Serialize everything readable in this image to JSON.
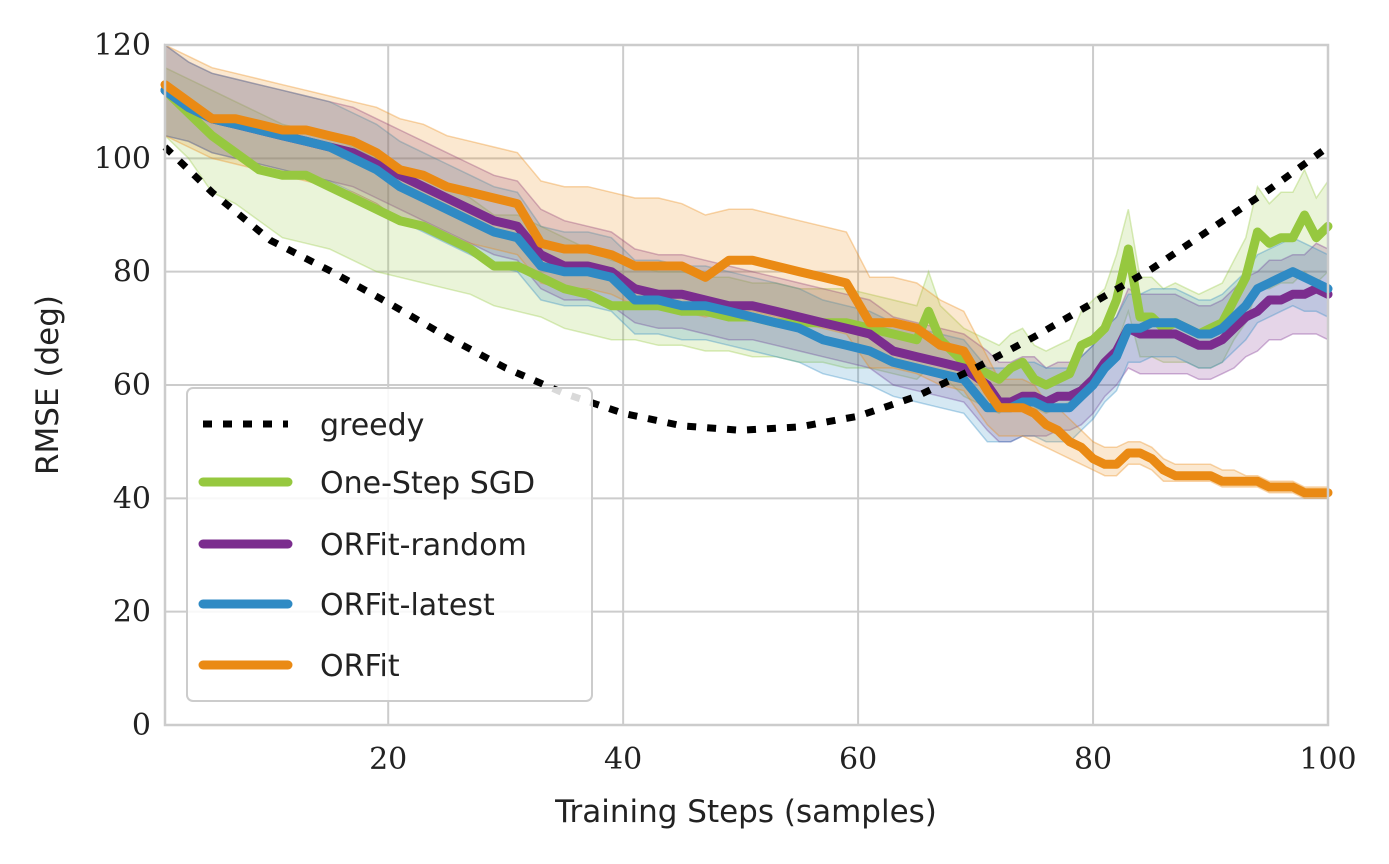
{
  "chart_data": {
    "type": "line",
    "title": "",
    "xlabel": "Training Steps (samples)",
    "ylabel": "RMSE (deg)",
    "xlim": [
      1,
      100
    ],
    "ylim": [
      0,
      120
    ],
    "xticks": [
      20,
      40,
      60,
      80,
      100
    ],
    "yticks": [
      0,
      20,
      40,
      60,
      80,
      100,
      120
    ],
    "grid": true,
    "legend_position": "bottom-left",
    "series": [
      {
        "name": "greedy",
        "color": "#000000",
        "style": "dotted",
        "x": [
          1,
          5,
          10,
          15,
          20,
          25,
          30,
          35,
          40,
          45,
          50,
          55,
          60,
          65,
          70,
          75,
          80,
          85,
          90,
          95,
          100
        ],
        "values": [
          102,
          94,
          85.5,
          80.2,
          74.5,
          68.5,
          63,
          58.5,
          55,
          52.8,
          52,
          52.6,
          54.5,
          58,
          63,
          68.5,
          74.5,
          80.5,
          87.5,
          94.5,
          102
        ]
      },
      {
        "name": "One-Step SGD",
        "color": "#96c83f",
        "style": "solid",
        "x": [
          1,
          3,
          5,
          7,
          9,
          11,
          13,
          15,
          17,
          19,
          21,
          23,
          25,
          27,
          29,
          31,
          33,
          35,
          37,
          39,
          41,
          43,
          45,
          47,
          49,
          51,
          53,
          55,
          57,
          59,
          61,
          63,
          65,
          66,
          67,
          69,
          71,
          72,
          73,
          74,
          75,
          76,
          77,
          78,
          79,
          80,
          81,
          82,
          83,
          84,
          85,
          86,
          87,
          88,
          89,
          90,
          91,
          92,
          93,
          94,
          95,
          96,
          97,
          98,
          99,
          100
        ],
        "values": [
          112,
          108,
          104,
          101,
          98,
          97,
          97,
          95,
          93,
          91,
          89,
          88,
          86,
          84,
          81,
          81,
          79,
          77,
          76,
          74,
          74,
          74,
          73,
          73,
          72,
          72,
          71,
          71,
          71,
          71,
          70,
          69,
          68,
          73,
          68,
          64,
          62,
          61,
          63,
          64,
          61,
          60,
          61,
          62,
          67,
          68,
          70,
          75,
          84,
          72,
          72,
          70,
          71,
          70,
          69,
          70,
          71,
          75,
          79,
          87,
          85,
          86,
          86,
          90,
          86,
          88
        ],
        "band_low": [
          104,
          100,
          94,
          92,
          89,
          86,
          85,
          84,
          82,
          80,
          79,
          78,
          77,
          76,
          74,
          73,
          72,
          70,
          69,
          68,
          68,
          67,
          67,
          66,
          66,
          65,
          65,
          64,
          64,
          63,
          63,
          62,
          61,
          63,
          62,
          58,
          56,
          55,
          57,
          58,
          56,
          55,
          56,
          57,
          60,
          62,
          64,
          67,
          73,
          65,
          65,
          64,
          64,
          64,
          63,
          63,
          64,
          68,
          71,
          77,
          77,
          78,
          78,
          80,
          78,
          80
        ],
        "band_high": [
          116,
          114,
          112,
          110,
          108,
          106,
          105,
          104,
          102,
          100,
          98,
          97,
          95,
          93,
          90,
          90,
          88,
          86,
          84,
          82,
          81,
          80,
          80,
          79,
          79,
          78,
          78,
          77,
          77,
          77,
          76,
          75,
          74,
          80,
          74,
          70,
          68,
          67,
          69,
          70,
          67,
          66,
          67,
          68,
          73,
          75,
          77,
          83,
          91,
          79,
          79,
          77,
          78,
          77,
          76,
          77,
          78,
          82,
          86,
          95,
          92,
          94,
          94,
          98,
          93,
          96
        ]
      },
      {
        "name": "ORFit-random",
        "color": "#7b2d8e",
        "style": "solid",
        "x": [
          1,
          3,
          5,
          7,
          9,
          11,
          13,
          15,
          17,
          19,
          21,
          23,
          25,
          27,
          29,
          31,
          33,
          35,
          37,
          39,
          41,
          43,
          45,
          47,
          49,
          51,
          53,
          55,
          57,
          59,
          61,
          63,
          65,
          67,
          69,
          71,
          72,
          73,
          74,
          75,
          76,
          77,
          78,
          79,
          80,
          81,
          82,
          83,
          84,
          85,
          86,
          87,
          88,
          89,
          90,
          91,
          92,
          93,
          94,
          95,
          96,
          97,
          98,
          99,
          100
        ],
        "values": [
          112,
          109,
          107,
          106,
          105,
          104,
          103,
          102,
          101,
          99,
          97,
          95,
          93,
          91,
          89,
          88,
          83,
          81,
          81,
          80,
          77,
          76,
          76,
          75,
          74,
          74,
          73,
          72,
          71,
          70,
          69,
          66,
          65,
          64,
          63,
          60,
          57,
          57,
          58,
          58,
          57,
          58,
          58,
          59,
          61,
          64,
          66,
          70,
          69,
          69,
          69,
          69,
          68,
          67,
          67,
          68,
          70,
          72,
          73,
          75,
          75,
          76,
          76,
          77,
          76
        ],
        "band_low": [
          104,
          103,
          101,
          100,
          99,
          98,
          97,
          96,
          95,
          93,
          91,
          89,
          87,
          85,
          83,
          82,
          77,
          75,
          75,
          74,
          71,
          70,
          70,
          69,
          68,
          68,
          67,
          66,
          65,
          64,
          63,
          60,
          59,
          58,
          57,
          52,
          50,
          50,
          51,
          51,
          51,
          52,
          52,
          53,
          55,
          58,
          60,
          63,
          62,
          62,
          62,
          62,
          62,
          61,
          61,
          62,
          63,
          65,
          66,
          68,
          68,
          69,
          69,
          69,
          68
        ],
        "band_high": [
          120,
          117,
          115,
          114,
          113,
          112,
          111,
          110,
          109,
          107,
          105,
          103,
          101,
          99,
          97,
          96,
          91,
          89,
          88,
          87,
          84,
          83,
          83,
          82,
          81,
          80,
          79,
          78,
          77,
          76,
          75,
          72,
          71,
          70,
          69,
          66,
          64,
          64,
          65,
          65,
          63,
          64,
          64,
          65,
          67,
          70,
          72,
          77,
          76,
          76,
          76,
          76,
          75,
          74,
          74,
          75,
          77,
          79,
          80,
          82,
          82,
          83,
          83,
          85,
          84
        ]
      },
      {
        "name": "ORFit-latest",
        "color": "#2f8ac4",
        "style": "solid",
        "x": [
          1,
          3,
          5,
          7,
          9,
          11,
          13,
          15,
          17,
          19,
          21,
          23,
          25,
          27,
          29,
          31,
          33,
          35,
          37,
          39,
          41,
          43,
          45,
          47,
          49,
          51,
          53,
          55,
          57,
          59,
          61,
          63,
          65,
          67,
          69,
          71,
          72,
          73,
          74,
          75,
          76,
          77,
          78,
          79,
          80,
          81,
          82,
          83,
          84,
          85,
          86,
          87,
          88,
          89,
          90,
          91,
          92,
          93,
          94,
          95,
          96,
          97,
          98,
          99,
          100
        ],
        "values": [
          112,
          109,
          107,
          106,
          105,
          104,
          103,
          102,
          100,
          98,
          95,
          93,
          91,
          89,
          87,
          86,
          81,
          80,
          80,
          79,
          75,
          75,
          74,
          74,
          73,
          72,
          71,
          70,
          68,
          67,
          66,
          64,
          63,
          62,
          61,
          56,
          56,
          56,
          57,
          57,
          56,
          56,
          56,
          58,
          60,
          63,
          65,
          70,
          70,
          71,
          71,
          71,
          70,
          69,
          69,
          70,
          72,
          74,
          77,
          78,
          79,
          80,
          79,
          78,
          77
        ],
        "band_low": [
          104,
          103,
          101,
          100,
          99,
          98,
          97,
          96,
          94,
          92,
          89,
          87,
          85,
          83,
          81,
          80,
          75,
          74,
          74,
          73,
          69,
          69,
          68,
          68,
          67,
          66,
          65,
          64,
          62,
          61,
          60,
          58,
          57,
          56,
          55,
          50,
          50,
          50,
          51,
          51,
          50,
          50,
          50,
          52,
          54,
          57,
          59,
          64,
          64,
          65,
          65,
          65,
          64,
          63,
          63,
          64,
          66,
          68,
          71,
          72,
          73,
          74,
          73,
          73,
          72
        ],
        "band_high": [
          120,
          117,
          115,
          114,
          113,
          112,
          111,
          110,
          108,
          106,
          103,
          101,
          99,
          97,
          95,
          94,
          88,
          87,
          87,
          86,
          82,
          82,
          81,
          81,
          80,
          79,
          78,
          77,
          75,
          74,
          73,
          71,
          70,
          69,
          68,
          63,
          63,
          63,
          64,
          64,
          63,
          63,
          63,
          65,
          67,
          70,
          72,
          76,
          76,
          77,
          77,
          77,
          76,
          75,
          75,
          76,
          78,
          80,
          83,
          84,
          85,
          86,
          85,
          84,
          83
        ]
      },
      {
        "name": "ORFit",
        "color": "#ea8a14",
        "style": "solid",
        "x": [
          1,
          3,
          5,
          7,
          9,
          11,
          13,
          15,
          17,
          19,
          21,
          23,
          25,
          27,
          29,
          31,
          33,
          35,
          37,
          39,
          41,
          43,
          45,
          47,
          49,
          51,
          53,
          55,
          57,
          59,
          61,
          63,
          65,
          67,
          69,
          71,
          72,
          73,
          74,
          75,
          76,
          77,
          78,
          79,
          80,
          81,
          82,
          83,
          84,
          85,
          86,
          87,
          88,
          89,
          90,
          91,
          92,
          93,
          94,
          95,
          96,
          97,
          98,
          99,
          100
        ],
        "values": [
          113,
          110,
          107,
          107,
          106,
          105,
          105,
          104,
          103,
          101,
          98,
          97,
          95,
          94,
          93,
          92,
          85,
          84,
          84,
          83,
          81,
          81,
          81,
          79,
          82,
          82,
          81,
          80,
          79,
          78,
          71,
          71,
          70,
          67,
          66,
          59,
          56,
          56,
          56,
          55,
          53,
          52,
          50,
          49,
          47,
          46,
          46,
          48,
          48,
          47,
          45,
          44,
          44,
          44,
          44,
          43,
          43,
          43,
          43,
          42,
          42,
          42,
          41,
          41,
          41
        ],
        "band_low": [
          104,
          102,
          100,
          99,
          98,
          97,
          96,
          95,
          94,
          92,
          89,
          88,
          86,
          85,
          84,
          83,
          78,
          77,
          77,
          76,
          74,
          74,
          73,
          72,
          73,
          73,
          72,
          71,
          70,
          69,
          63,
          63,
          62,
          60,
          59,
          53,
          51,
          51,
          51,
          50,
          49,
          48,
          47,
          46,
          45,
          44,
          44,
          46,
          46,
          45,
          43,
          43,
          43,
          43,
          43,
          42,
          42,
          42,
          42,
          41,
          41,
          41,
          40,
          40,
          40
        ],
        "band_high": [
          120,
          118,
          116,
          115,
          114,
          113,
          112,
          111,
          110,
          109,
          107,
          106,
          104,
          103,
          102,
          101,
          96,
          95,
          95,
          94,
          93,
          93,
          92,
          90,
          91,
          91,
          90,
          89,
          88,
          87,
          79,
          79,
          78,
          75,
          73,
          65,
          61,
          61,
          61,
          60,
          57,
          56,
          54,
          52,
          50,
          49,
          49,
          50,
          50,
          49,
          47,
          46,
          46,
          46,
          46,
          45,
          45,
          44,
          44,
          43,
          43,
          43,
          42,
          42,
          42
        ]
      }
    ]
  }
}
